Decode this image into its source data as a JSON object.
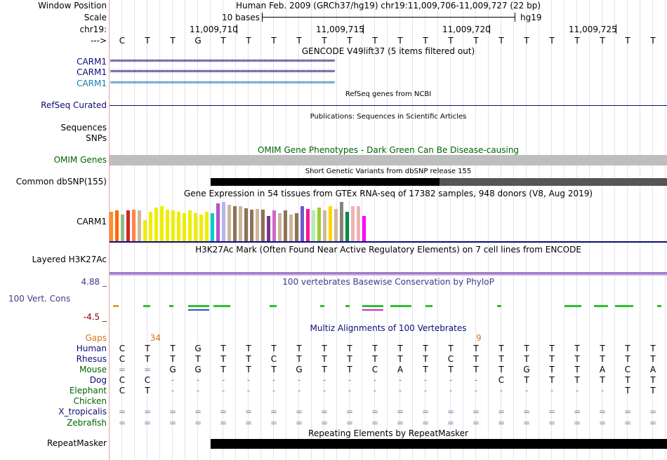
{
  "header": {
    "window_position_label": "Window Position",
    "scale_label": "Scale",
    "chr_label": "chr19:",
    "strand_label": "--->",
    "assembly_text": "Human Feb. 2009 (GRCh37/hg19)   chr19:11,009,706-11,009,727 (22 bp)",
    "scale_text": "10 bases",
    "scale_db": "hg19",
    "ticks": [
      "11,009,710",
      "11,009,715",
      "11,009,720",
      "11,009,725"
    ]
  },
  "sequence": [
    "C",
    "T",
    "T",
    "G",
    "T",
    "T",
    "T",
    "T",
    "T",
    "T",
    "T",
    "T",
    "T",
    "T",
    "T",
    "T",
    "T",
    "T",
    "T",
    "T",
    "T",
    "T"
  ],
  "gencode": {
    "title": "GENCODE V49lift37 (5 items filtered out)",
    "tracks": [
      "CARM1",
      "CARM1",
      "CARM1"
    ],
    "colors": [
      "#0c0c78",
      "#0c0c78",
      "#1f77b4"
    ]
  },
  "refseq": {
    "title": "RefSeq genes from NCBI",
    "label": "RefSeq Curated"
  },
  "publications": {
    "title": "Publications: Sequences in Scientific Articles",
    "labels": [
      "Sequences",
      "SNPs"
    ]
  },
  "omim": {
    "title": "OMIM Gene Phenotypes - Dark Green Can Be Disease-causing",
    "label": "OMIM Genes"
  },
  "dbsnp": {
    "title": "Short Genetic Variants from dbSNP release 155",
    "label": "Common dbSNP(155)"
  },
  "gtex": {
    "title": "Gene Expression in 54 tissues from GTEx RNA-seq of 17382 samples, 948 donors (V8, Aug 2019)",
    "label": "CARM1",
    "bar_colors": [
      "#ff8d2a",
      "#ff6900",
      "#8fbc8f",
      "#cd2626",
      "#ff8247",
      "#cdb79e",
      "#eeee00",
      "#eeee00",
      "#eeee00",
      "#eeee00",
      "#eeee00",
      "#eeee00",
      "#eeee00",
      "#eeee00",
      "#eeee00",
      "#eeee00",
      "#eeee00",
      "#eeee00",
      "#00cdcd",
      "#b452cd",
      "#b4b4ee",
      "#cdb79e",
      "#8b7355",
      "#cdb79e",
      "#8b7355",
      "#8b7355",
      "#cdb79e",
      "#8b7355",
      "#7a378b",
      "#cd69c9",
      "#cdb79e",
      "#8b7355",
      "#cdb79e",
      "#8b7355",
      "#6a5acd",
      "#ff1493",
      "#b4eeb4",
      "#9acd32",
      "#cdb79e",
      "#ffd700",
      "#cdb79e",
      "#8b8378",
      "#008b45",
      "#eeb4b4",
      "#eeb4b4",
      "#ff00ff"
    ],
    "bar_values": [
      42,
      44,
      38,
      44,
      45,
      44,
      30,
      42,
      48,
      50,
      45,
      44,
      42,
      40,
      44,
      40,
      38,
      42,
      40,
      54,
      56,
      52,
      50,
      50,
      47,
      45,
      46,
      45,
      36,
      44,
      40,
      44,
      38,
      40,
      50,
      46,
      44,
      48,
      44,
      50,
      46,
      56,
      42,
      50,
      50,
      36
    ]
  },
  "h3k27ac": {
    "title": "H3K27Ac Mark (Often Found Near Active Regulatory Elements) on 7 cell lines from ENCODE",
    "label": "Layered H3K27Ac"
  },
  "conservation": {
    "title": "100 vertebrates Basewise Conservation by PhyloP",
    "label": "100 Vert. Cons",
    "max": "4.88 _",
    "min": "-4.5 _"
  },
  "multiz": {
    "title": "Multiz Alignments of 100 Vertebrates",
    "gaps_label": "Gaps",
    "gap_values": [
      {
        "col": 1.6,
        "text": "34"
      },
      {
        "col": 14.5,
        "text": "9"
      }
    ],
    "species": [
      {
        "name": "Human",
        "color": "#0c0c78",
        "bases": [
          "C",
          "T",
          "T",
          "G",
          "T",
          "T",
          "T",
          "T",
          "T",
          "T",
          "T",
          "T",
          "T",
          "T",
          "T",
          "T",
          "T",
          "T",
          "T",
          "T",
          "T",
          "T"
        ]
      },
      {
        "name": "Rhesus",
        "color": "#0c0c78",
        "bases": [
          "C",
          "T",
          "T",
          "T",
          "T",
          "T",
          "C",
          "T",
          "T",
          "T",
          "T",
          "T",
          "T",
          "C",
          "T",
          "T",
          "T",
          "T",
          "T",
          "T",
          "T",
          "T"
        ]
      },
      {
        "name": "Mouse",
        "color": "#006400",
        "bases": [
          "=",
          "=",
          "G",
          "G",
          "T",
          "T",
          "T",
          "G",
          "T",
          "T",
          "C",
          "A",
          "T",
          "T",
          "T",
          "T",
          "G",
          "T",
          "T",
          "A",
          "C",
          "A"
        ]
      },
      {
        "name": "Dog",
        "color": "#0c0c78",
        "bases": [
          "C",
          "C",
          "-",
          "-",
          "-",
          "-",
          "-",
          "-",
          "-",
          "-",
          "-",
          "-",
          "-",
          "-",
          "-",
          "C",
          "T",
          "T",
          "T",
          "T",
          "T",
          "T"
        ]
      },
      {
        "name": "Elephant",
        "color": "#006400",
        "bases": [
          "C",
          "T",
          "-",
          "-",
          "-",
          "-",
          "-",
          "-",
          "-",
          "-",
          "-",
          "-",
          "-",
          "-",
          "-",
          "-",
          "-",
          "-",
          "-",
          "-",
          "T",
          "T"
        ]
      },
      {
        "name": "Chicken",
        "color": "#006400",
        "bases": []
      },
      {
        "name": "X_tropicalis",
        "color": "#0c0c78",
        "bases": [
          "=",
          "=",
          "=",
          "=",
          "=",
          "=",
          "=",
          "=",
          "=",
          "=",
          "=",
          "=",
          "=",
          "=",
          "=",
          "=",
          "=",
          "=",
          "=",
          "=",
          "=",
          "="
        ]
      },
      {
        "name": "Zebrafish",
        "color": "#006400",
        "bases": [
          "=",
          "=",
          "=",
          "=",
          "=",
          "=",
          "=",
          "=",
          "=",
          "=",
          "=",
          "=",
          "=",
          "=",
          "=",
          "=",
          "=",
          "=",
          "=",
          "=",
          "=",
          "="
        ]
      }
    ]
  },
  "repeatmasker": {
    "title": "Repeating Elements by RepeatMasker",
    "label": "RepeatMasker"
  },
  "colors": {
    "navy": "#0c0c78",
    "dark_green": "#006400",
    "phylop": "#3c3c8c",
    "gaps": "#d2781e",
    "omim_bar": "#bebebe",
    "h3k27ac": "#a07ac8"
  }
}
